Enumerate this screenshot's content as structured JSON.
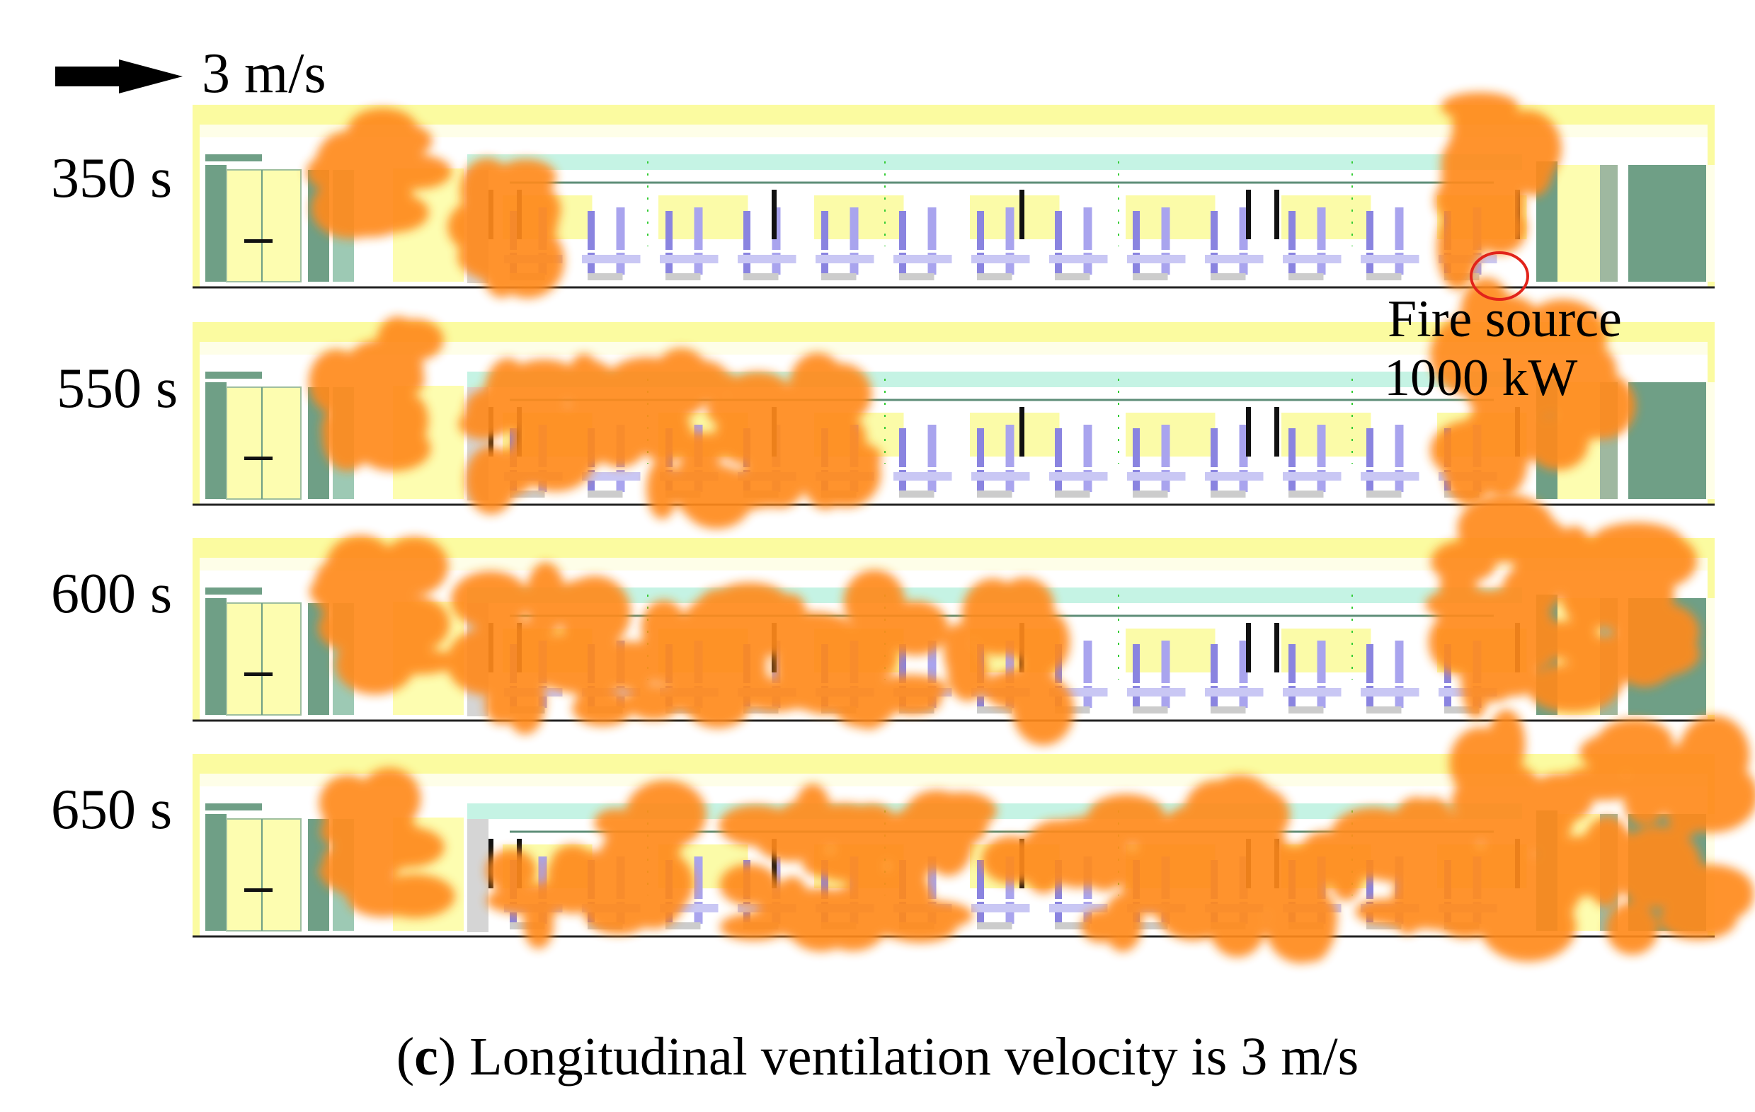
{
  "velocity_arrow": {
    "label": "3 m/s",
    "icon": "right-arrow-icon"
  },
  "panels": [
    {
      "time_label": "350 s",
      "smoke_extent": 0.05
    },
    {
      "time_label": "550 s",
      "smoke_extent": 0.35
    },
    {
      "time_label": "600 s",
      "smoke_extent": 0.55
    },
    {
      "time_label": "650 s",
      "smoke_extent": 0.95
    }
  ],
  "fire_annotation": {
    "line1": "Fire source",
    "line2": "1000 kW"
  },
  "caption": {
    "open_paren": "(",
    "letter": "c",
    "rest": ") Longitudinal ventilation velocity is 3 m/s"
  },
  "colors": {
    "smoke": "#ff8a1e",
    "roof": "#fbfba0",
    "panel_yellow": "#fdfdb0",
    "rail": "#c5f3e4",
    "seat_blue": "#8a84e0",
    "end_green": "#6f9f86",
    "fire_circle": "#e2231a"
  }
}
